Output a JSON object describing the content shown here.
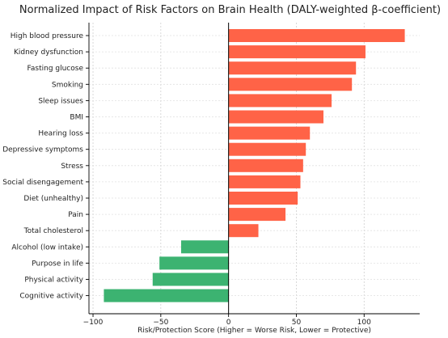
{
  "chart_data": {
    "type": "bar",
    "orientation": "horizontal",
    "title": "Normalized Impact of Risk Factors on Brain Health (DALY-weighted β-coefficient)",
    "xlabel": "Risk/Protection Score (Higher = Worse Risk, Lower = Protective)",
    "ylabel": "",
    "xlim": [
      -103,
      141
    ],
    "xticks": [
      -100,
      -50,
      0,
      50,
      100
    ],
    "grid": true,
    "categories": [
      "High blood pressure",
      "Kidney dysfunction",
      "Fasting glucose",
      "Smoking",
      "Sleep issues",
      "BMI",
      "Hearing loss",
      "Depressive symptoms",
      "Stress",
      "Social disengagement",
      "Diet (unhealthy)",
      "Pain",
      "Total cholesterol",
      "Alcohol (low intake)",
      "Purpose in life",
      "Physical activity",
      "Cognitive activity"
    ],
    "values": [
      130,
      101,
      94,
      91,
      76,
      70,
      60,
      57,
      55,
      53,
      51,
      42,
      22,
      -35,
      -51,
      -56,
      -92
    ],
    "colors": {
      "positive": "#ff6347",
      "negative": "#3cb371"
    }
  }
}
